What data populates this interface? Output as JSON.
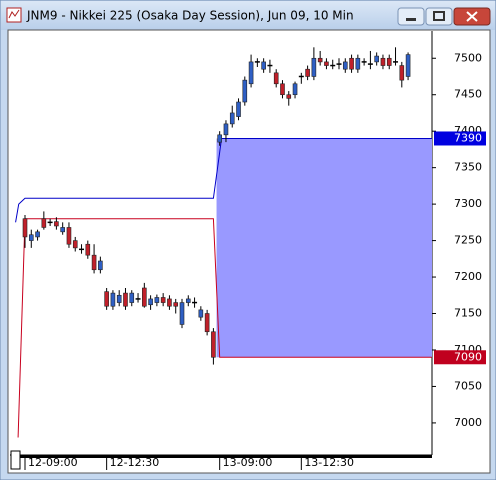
{
  "chart_data": {
    "type": "candlestick",
    "title": "JNM9 - Nikkei 225 (Osaka Day Session), Jun 09, 10 Min",
    "categories": [
      "12-09:00",
      null,
      null,
      null,
      null,
      null,
      null,
      null,
      null,
      null,
      null,
      null,
      null,
      "12-12:30",
      null,
      null,
      null,
      null,
      null,
      null,
      null,
      null,
      null,
      null,
      null,
      null,
      null,
      null,
      null,
      null,
      null,
      "13-09:00",
      null,
      null,
      null,
      null,
      null,
      null,
      null,
      null,
      null,
      null,
      null,
      null,
      "13-12:30",
      null,
      null,
      null,
      null,
      null,
      null,
      null,
      null,
      null,
      null,
      null,
      null,
      null,
      null,
      null,
      null,
      null
    ],
    "open": [
      7280,
      7250,
      7255,
      7280,
      7275,
      7276,
      7262,
      7268,
      7250,
      7238,
      7245,
      7230,
      7210,
      7180,
      7160,
      7165,
      7178,
      7165,
      7170,
      7185,
      7162,
      7165,
      7172,
      7170,
      7165,
      7135,
      7165,
      7165,
      7145,
      7150,
      7125,
      7385,
      7395,
      7410,
      7420,
      7440,
      7465,
      7495,
      7485,
      7490,
      7480,
      7465,
      7450,
      7450,
      7475,
      7485,
      7475,
      7500,
      7495,
      7490,
      7492,
      7485,
      7500,
      7485,
      7495,
      7492,
      7495,
      7500,
      7500,
      7495,
      7490,
      7475
    ],
    "high": [
      7285,
      7265,
      7265,
      7290,
      7280,
      7282,
      7275,
      7275,
      7255,
      7245,
      7250,
      7245,
      7228,
      7185,
      7182,
      7182,
      7185,
      7182,
      7178,
      7192,
      7175,
      7176,
      7178,
      7175,
      7170,
      7170,
      7175,
      7172,
      7160,
      7155,
      7130,
      7400,
      7415,
      7435,
      7445,
      7475,
      7505,
      7500,
      7500,
      7498,
      7485,
      7470,
      7455,
      7468,
      7480,
      7490,
      7515,
      7510,
      7500,
      7498,
      7500,
      7500,
      7505,
      7505,
      7500,
      7510,
      7508,
      7505,
      7505,
      7515,
      7495,
      7508
    ],
    "low": [
      7240,
      7240,
      7250,
      7265,
      7270,
      7265,
      7258,
      7240,
      7235,
      7232,
      7225,
      7205,
      7205,
      7155,
      7155,
      7160,
      7155,
      7160,
      7165,
      7158,
      7155,
      7160,
      7160,
      7155,
      7150,
      7130,
      7160,
      7158,
      7140,
      7120,
      7080,
      7380,
      7385,
      7405,
      7415,
      7435,
      7460,
      7488,
      7480,
      7480,
      7460,
      7445,
      7435,
      7445,
      7465,
      7470,
      7470,
      7490,
      7485,
      7485,
      7485,
      7480,
      7480,
      7480,
      7490,
      7485,
      7490,
      7485,
      7485,
      7490,
      7460,
      7470
    ],
    "close": [
      7255,
      7258,
      7262,
      7268,
      7275,
      7270,
      7268,
      7245,
      7240,
      7238,
      7230,
      7210,
      7222,
      7160,
      7178,
      7175,
      7160,
      7178,
      7170,
      7160,
      7170,
      7172,
      7165,
      7160,
      7160,
      7165,
      7170,
      7165,
      7155,
      7125,
      7090,
      7395,
      7410,
      7425,
      7440,
      7470,
      7495,
      7495,
      7495,
      7490,
      7465,
      7450,
      7445,
      7465,
      7475,
      7475,
      7500,
      7495,
      7490,
      7490,
      7492,
      7495,
      7485,
      7500,
      7495,
      7492,
      7503,
      7490,
      7490,
      7495,
      7470,
      7505
    ],
    "up_color": "#2f5fc4",
    "down_color": "#c0202a",
    "ylim": [
      6956,
      7536
    ],
    "yticks": [
      7000,
      7050,
      7100,
      7150,
      7200,
      7250,
      7300,
      7350,
      7400,
      7450,
      7500
    ],
    "lines": [
      {
        "color": "#0000c8",
        "x": [
          -1.5,
          -1.0,
          0,
          30,
          31.3,
          64.8
        ],
        "values": [
          7275,
          7300,
          7308,
          7308,
          7390,
          7390
        ]
      },
      {
        "color": "#c8001e",
        "x": [
          -1.1,
          0,
          30,
          31,
          64.8
        ],
        "values": [
          6980,
          7280,
          7280,
          7090,
          7090
        ]
      }
    ],
    "band": {
      "x": 30.5,
      "high": 7390,
      "low": 7090,
      "color": "#9999ff",
      "high_color": "#0000e0",
      "low_color": "#c0001e"
    }
  }
}
